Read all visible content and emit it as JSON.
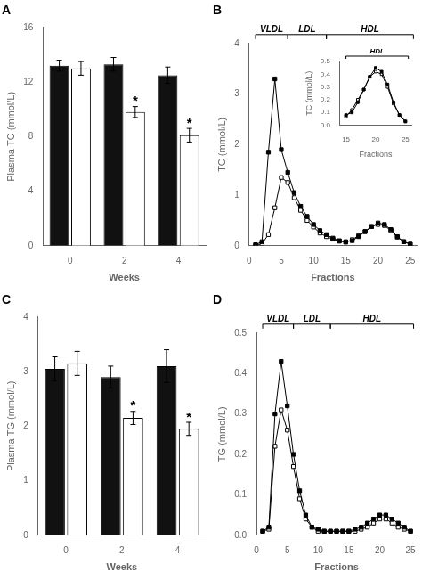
{
  "chart_data": [
    {
      "type": "bar",
      "title": "A",
      "categories": [
        "0",
        "2",
        "4"
      ],
      "series": [
        {
          "color": "#111111",
          "values": [
            13.2,
            13.3,
            12.5
          ],
          "errors": [
            0.4,
            0.5,
            0.6
          ]
        },
        {
          "color": "#ffffff",
          "values": [
            13.0,
            9.8,
            8.1
          ],
          "errors": [
            0.5,
            0.4,
            0.5
          ],
          "annotations": [
            {
              "x": "2",
              "text": "*"
            },
            {
              "x": "4",
              "text": "*"
            }
          ]
        }
      ],
      "xlabel": "Weeks",
      "ylabel": "Plasma TC (mmol/L)",
      "ylim": [
        0,
        16
      ],
      "yticks": [
        0,
        4,
        8,
        12,
        16
      ],
      "grid": false
    },
    {
      "type": "line",
      "title": "B",
      "x": [
        1,
        2,
        3,
        4,
        5,
        6,
        7,
        8,
        9,
        10,
        11,
        12,
        13,
        14,
        15,
        16,
        17,
        18,
        19,
        20,
        21,
        22,
        23,
        24,
        25
      ],
      "series": [
        {
          "color": "#000000",
          "marker": "filled_square",
          "values": [
            0.02,
            0.08,
            1.85,
            3.3,
            1.9,
            1.45,
            1.05,
            0.78,
            0.58,
            0.42,
            0.3,
            0.22,
            0.15,
            0.1,
            0.08,
            0.1,
            0.18,
            0.28,
            0.38,
            0.45,
            0.42,
            0.32,
            0.18,
            0.08,
            0.03
          ]
        },
        {
          "color": "#000000",
          "marker": "open_square",
          "values": [
            0.01,
            0.04,
            0.22,
            0.75,
            1.35,
            1.25,
            0.95,
            0.7,
            0.5,
            0.37,
            0.25,
            0.18,
            0.13,
            0.09,
            0.07,
            0.12,
            0.2,
            0.28,
            0.38,
            0.42,
            0.4,
            0.3,
            0.17,
            0.08,
            0.03
          ]
        }
      ],
      "xlabel": "Fractions",
      "ylabel": "TC (mmol/L)",
      "xlim": [
        0,
        26
      ],
      "xticks": [
        0,
        5,
        10,
        15,
        20,
        25
      ],
      "ylim": [
        0,
        4
      ],
      "yticks": [
        0,
        1,
        2,
        3,
        4
      ],
      "grid": false,
      "annotations": [
        {
          "text": "VLDL",
          "x": [
            1,
            6
          ]
        },
        {
          "text": "LDL",
          "x": [
            6,
            12
          ]
        },
        {
          "text": "HDL",
          "x": [
            12,
            25.5
          ]
        }
      ],
      "inset": {
        "type": "line",
        "x": [
          15,
          16,
          17,
          18,
          19,
          20,
          21,
          22,
          23,
          24,
          25
        ],
        "series": [
          {
            "color": "#000000",
            "marker": "filled_square",
            "values": [
              0.08,
              0.1,
              0.18,
              0.28,
              0.38,
              0.45,
              0.42,
              0.32,
              0.18,
              0.08,
              0.03
            ]
          },
          {
            "color": "#000000",
            "marker": "open_square",
            "values": [
              0.07,
              0.12,
              0.2,
              0.28,
              0.38,
              0.42,
              0.4,
              0.3,
              0.17,
              0.08,
              0.03
            ]
          }
        ],
        "xlabel": "Fractions",
        "ylabel": "TC (mmol/L)",
        "xlim": [
          14,
          26
        ],
        "xticks": [
          15,
          20,
          25
        ],
        "ylim": [
          0,
          0.5
        ],
        "yticks": [
          {
            "value": 0,
            "label": "0.0"
          },
          0.1,
          0.2,
          0.3,
          0.4,
          0.5
        ],
        "grid": false,
        "annotations": [
          {
            "text": "HDL",
            "x": [
              15,
              25.5
            ]
          }
        ]
      }
    },
    {
      "type": "bar",
      "title": "C",
      "categories": [
        "0",
        "2",
        "4"
      ],
      "series": [
        {
          "color": "#111111",
          "values": [
            3.05,
            2.9,
            3.1
          ],
          "errors": [
            0.22,
            0.2,
            0.3
          ]
        },
        {
          "color": "#ffffff",
          "values": [
            3.15,
            2.15,
            1.95
          ],
          "errors": [
            0.22,
            0.12,
            0.12
          ],
          "annotations": [
            {
              "x": "2",
              "text": "*"
            },
            {
              "x": "4",
              "text": "*"
            }
          ]
        }
      ],
      "xlabel": "Weeks",
      "ylabel": "Plasma TG (mmol/L)",
      "ylim": [
        0,
        4
      ],
      "yticks": [
        0,
        1,
        2,
        3,
        4
      ],
      "grid": false
    },
    {
      "type": "line",
      "title": "D",
      "x": [
        1,
        2,
        3,
        4,
        5,
        6,
        7,
        8,
        9,
        10,
        11,
        12,
        13,
        14,
        15,
        16,
        17,
        18,
        19,
        20,
        21,
        22,
        23,
        24,
        25
      ],
      "series": [
        {
          "color": "#000000",
          "marker": "filled_square",
          "values": [
            0.01,
            0.02,
            0.3,
            0.43,
            0.32,
            0.2,
            0.11,
            0.05,
            0.02,
            0.015,
            0.01,
            0.01,
            0.01,
            0.01,
            0.01,
            0.015,
            0.02,
            0.03,
            0.04,
            0.05,
            0.05,
            0.04,
            0.03,
            0.02,
            0.01
          ]
        },
        {
          "color": "#000000",
          "marker": "open_square",
          "values": [
            0.01,
            0.015,
            0.22,
            0.31,
            0.26,
            0.17,
            0.09,
            0.04,
            0.02,
            0.01,
            0.01,
            0.01,
            0.01,
            0.01,
            0.01,
            0.01,
            0.015,
            0.02,
            0.03,
            0.04,
            0.04,
            0.03,
            0.02,
            0.015,
            0.01
          ]
        }
      ],
      "xlabel": "Fractions",
      "ylabel": "TG (mmol/L)",
      "xlim": [
        0,
        26
      ],
      "xticks": [
        0,
        5,
        10,
        15,
        20,
        25
      ],
      "ylim": [
        0,
        0.5
      ],
      "yticks": [
        {
          "value": 0,
          "label": "0.0"
        },
        0.1,
        0.2,
        0.3,
        0.4,
        0.5
      ],
      "grid": false,
      "annotations": [
        {
          "text": "VLDL",
          "x": [
            1,
            6
          ]
        },
        {
          "text": "LDL",
          "x": [
            6,
            12
          ]
        },
        {
          "text": "HDL",
          "x": [
            12,
            25.5
          ]
        }
      ]
    }
  ]
}
